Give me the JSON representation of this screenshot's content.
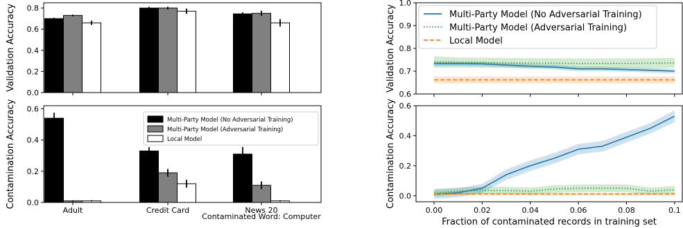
{
  "chart_data": [
    {
      "type": "bar",
      "id": "bar-top",
      "ylabel": "Validation Accuracy",
      "categories": [
        "Adult",
        "Credit Card",
        "News 20"
      ],
      "ylim": [
        0,
        0.85
      ],
      "yticks": [
        0.0,
        0.2,
        0.4,
        0.6,
        0.8
      ],
      "tick_labels": [
        "0.0",
        "0.2",
        "0.4",
        "0.6",
        "0.8"
      ],
      "series": [
        {
          "name": "Multi-Party Model (No Adversarial Training)",
          "color": "#000000",
          "values": [
            0.7,
            0.8,
            0.745
          ],
          "errors": [
            0.008,
            0.012,
            0.015
          ]
        },
        {
          "name": "Multi-Party Model (Adversarial Training)",
          "color": "#808080",
          "values": [
            0.73,
            0.8,
            0.75
          ],
          "errors": [
            0.008,
            0.012,
            0.025
          ]
        },
        {
          "name": "Local Model",
          "color": "#ffffff",
          "values": [
            0.66,
            0.77,
            0.66
          ],
          "errors": [
            0.02,
            0.025,
            0.035
          ]
        }
      ]
    },
    {
      "type": "bar",
      "id": "bar-bottom",
      "ylabel": "Contamination Accuracy",
      "categories": [
        "Adult",
        "Credit Card",
        "News 20"
      ],
      "xlabel": "Contaminated Word: Computer",
      "legend_position": "upper-right",
      "ylim": [
        0,
        0.62
      ],
      "yticks": [
        0.0,
        0.2,
        0.4,
        0.6
      ],
      "tick_labels": [
        "0.0",
        "0.2",
        "0.4",
        "0.6"
      ],
      "series": [
        {
          "name": "Multi-Party Model (No Adversarial Training)",
          "color": "#000000",
          "values": [
            0.54,
            0.33,
            0.31
          ],
          "errors": [
            0.035,
            0.025,
            0.045
          ]
        },
        {
          "name": "Multi-Party Model (Adversarial Training)",
          "color": "#808080",
          "values": [
            0.01,
            0.19,
            0.11
          ],
          "errors": [
            0.004,
            0.025,
            0.025
          ]
        },
        {
          "name": "Local Model",
          "color": "#ffffff",
          "values": [
            0.01,
            0.12,
            0.01
          ],
          "errors": [
            0.004,
            0.025,
            0.004
          ]
        }
      ]
    },
    {
      "type": "line",
      "id": "line-top",
      "ylabel": "Validation Accuracy",
      "xlim": [
        -0.0075,
        0.1035
      ],
      "ylim": [
        0.6,
        1.0
      ],
      "yticks": [
        0.6,
        0.7,
        0.8,
        0.9,
        1.0
      ],
      "tick_labels": [
        "0.6",
        "0.7",
        "0.8",
        "0.9",
        "1.0"
      ],
      "legend_position": "upper-left",
      "x": [
        0,
        0.01,
        0.02,
        0.03,
        0.04,
        0.05,
        0.06,
        0.07,
        0.08,
        0.09,
        0.1
      ],
      "series": [
        {
          "name": "Multi-Party Model (No Adversarial Training)",
          "color": "#1f77b4",
          "style": "solid",
          "values": [
            0.733,
            0.733,
            0.732,
            0.727,
            0.722,
            0.718,
            0.71,
            0.71,
            0.707,
            0.704,
            0.7
          ],
          "band": [
            0.01,
            0.01,
            0.01,
            0.01,
            0.01,
            0.01,
            0.01,
            0.01,
            0.01,
            0.01,
            0.01
          ]
        },
        {
          "name": "Multi-Party Model (Adversarial Training)",
          "color": "#2ca02c",
          "style": "dotted",
          "values": [
            0.74,
            0.738,
            0.737,
            0.736,
            0.735,
            0.735,
            0.734,
            0.734,
            0.734,
            0.735,
            0.736
          ],
          "band": [
            0.025,
            0.022,
            0.022,
            0.022,
            0.022,
            0.022,
            0.022,
            0.022,
            0.022,
            0.022,
            0.022
          ]
        },
        {
          "name": "Local Model",
          "color": "#ff7f0e",
          "style": "dashed",
          "values": [
            0.662,
            0.662,
            0.662,
            0.662,
            0.662,
            0.662,
            0.662,
            0.662,
            0.662,
            0.662,
            0.662
          ],
          "band": [
            0.015,
            0.015,
            0.015,
            0.015,
            0.015,
            0.015,
            0.015,
            0.015,
            0.015,
            0.015,
            0.015
          ]
        }
      ]
    },
    {
      "type": "line",
      "id": "line-bottom",
      "ylabel": "Contamination Accuracy",
      "xlabel": "Fraction of contaminated records in training set",
      "xlim": [
        -0.0075,
        0.1035
      ],
      "ylim": [
        -0.04,
        0.6
      ],
      "yticks": [
        0.0,
        0.2,
        0.4,
        0.6
      ],
      "tick_labels": [
        "0.0",
        "0.2",
        "0.4",
        "0.6"
      ],
      "xticks": [
        0,
        0.02,
        0.04,
        0.06,
        0.08,
        0.1
      ],
      "xtick_labels": [
        "0.00",
        "0.02",
        "0.04",
        "0.06",
        "0.08",
        "0.1"
      ],
      "x": [
        0,
        0.01,
        0.02,
        0.03,
        0.04,
        0.05,
        0.06,
        0.07,
        0.08,
        0.09,
        0.1
      ],
      "series": [
        {
          "name": "Multi-Party Model (No Adversarial Training)",
          "color": "#1f77b4",
          "style": "solid",
          "values": [
            0.01,
            0.02,
            0.05,
            0.14,
            0.2,
            0.25,
            0.31,
            0.33,
            0.39,
            0.45,
            0.53
          ],
          "band": [
            0.03,
            0.03,
            0.03,
            0.035,
            0.035,
            0.035,
            0.035,
            0.035,
            0.035,
            0.035,
            0.04
          ]
        },
        {
          "name": "Multi-Party Model (Adversarial Training)",
          "color": "#2ca02c",
          "style": "dotted",
          "values": [
            0.02,
            0.03,
            0.035,
            0.035,
            0.03,
            0.045,
            0.05,
            0.05,
            0.05,
            0.03,
            0.04
          ],
          "band": [
            0.025,
            0.025,
            0.025,
            0.025,
            0.025,
            0.025,
            0.025,
            0.025,
            0.025,
            0.025,
            0.025
          ]
        },
        {
          "name": "Local Model",
          "color": "#ff7f0e",
          "style": "dashed",
          "values": [
            0.012,
            0.012,
            0.012,
            0.012,
            0.012,
            0.012,
            0.012,
            0.012,
            0.012,
            0.012,
            0.012
          ],
          "band": [
            0.008,
            0.008,
            0.008,
            0.008,
            0.008,
            0.008,
            0.008,
            0.008,
            0.008,
            0.008,
            0.008
          ]
        }
      ]
    }
  ]
}
